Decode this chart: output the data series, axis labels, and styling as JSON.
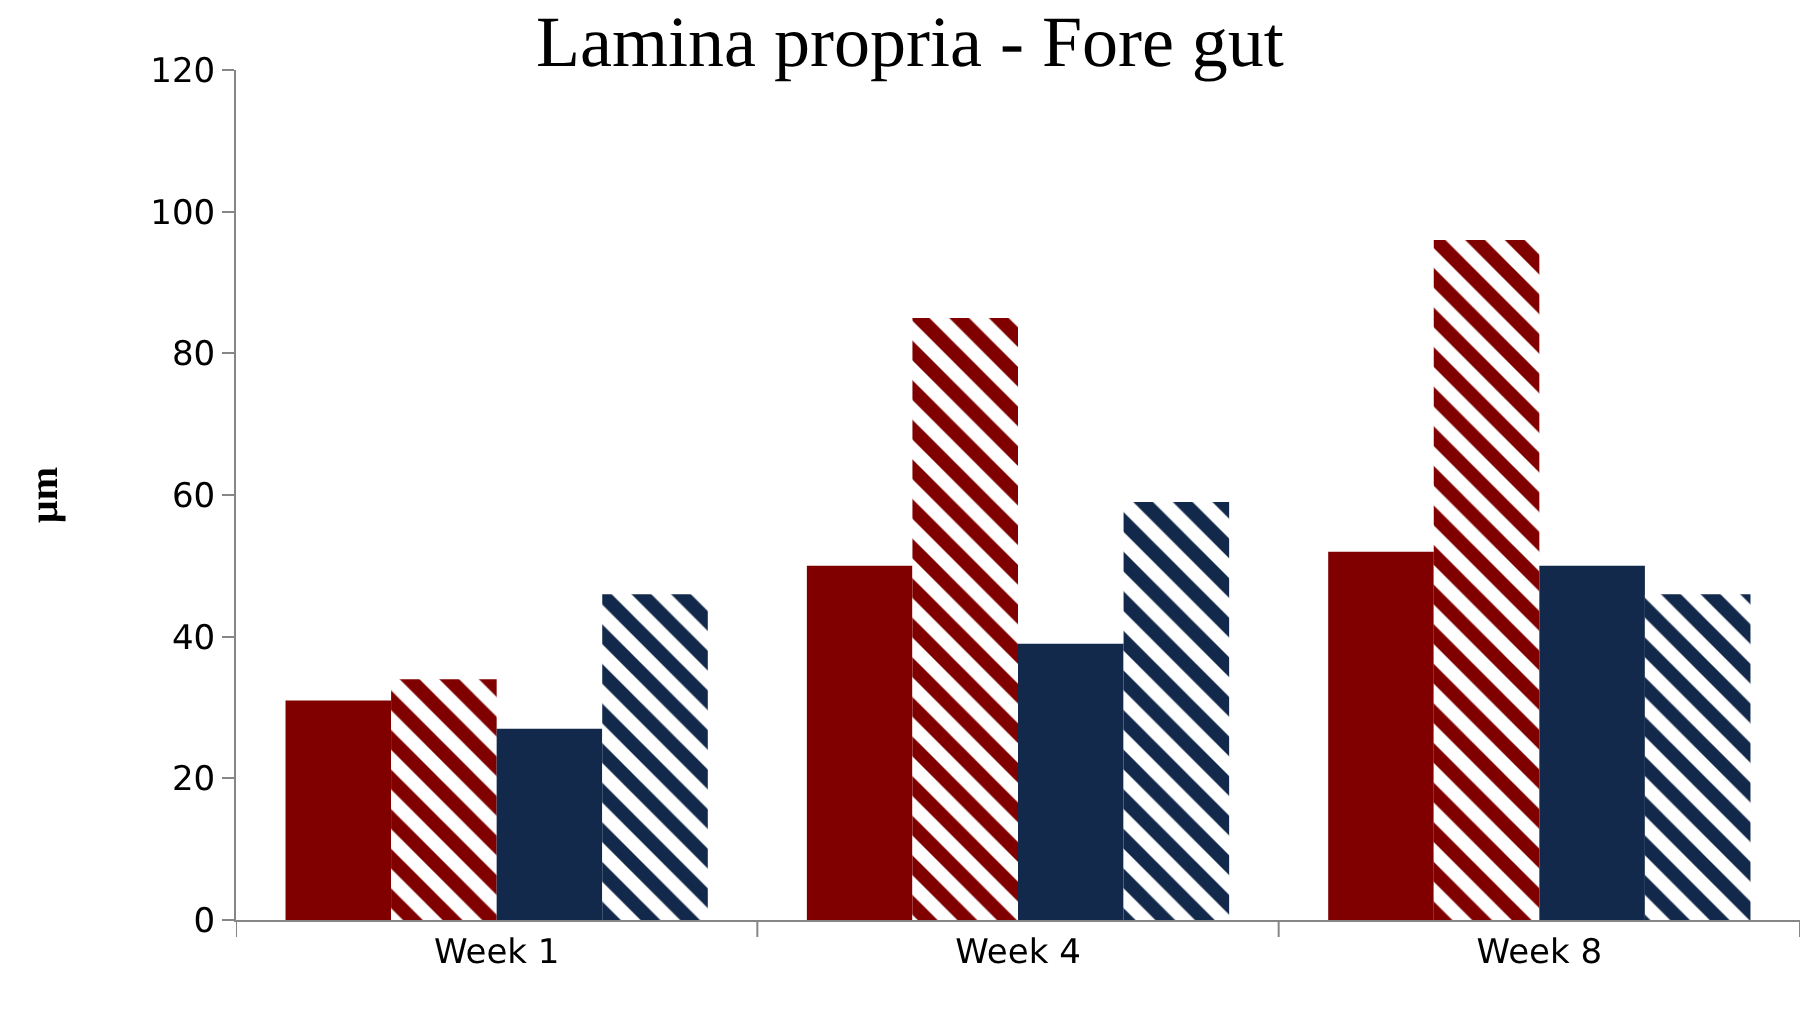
{
  "chart_data": {
    "type": "bar",
    "title": "Lamina propria - Fore gut",
    "ylabel": "µm",
    "categories": [
      "Week 1",
      "Week 4",
      "Week 8"
    ],
    "series": [
      {
        "color": "#800000",
        "values": [
          31,
          50,
          52
        ]
      },
      {
        "color": "#800000",
        "values": [
          34,
          85,
          96
        ]
      },
      {
        "color": "#13294b",
        "values": [
          27,
          39,
          50
        ]
      },
      {
        "color": "#13294b",
        "values": [
          46,
          59,
          46
        ]
      }
    ],
    "ylim": [
      0,
      120
    ],
    "yticks": [
      0,
      20,
      40,
      60,
      80,
      100,
      120
    ],
    "grid": false
  }
}
